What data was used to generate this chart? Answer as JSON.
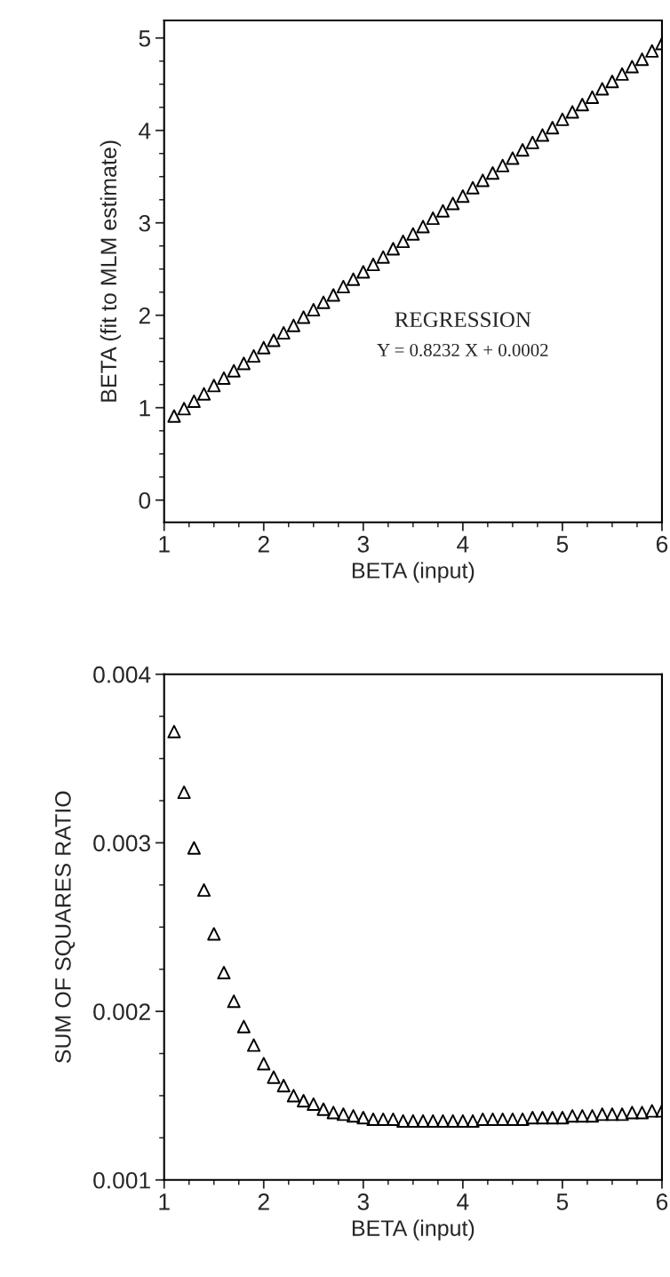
{
  "chart_data": [
    {
      "type": "scatter",
      "xlabel": "BETA (input)",
      "ylabel": "BETA (fit to MLM estimate)",
      "marker": "triangle",
      "grid": false,
      "legend": false,
      "annotations": [
        "REGRESSION",
        "Y = 0.8232 X + 0.0002"
      ],
      "xlim": [
        1,
        6
      ],
      "ylim": [
        -0.24,
        5.19
      ],
      "xticks": [
        1,
        {
          "value": 1.25,
          "label": null
        },
        {
          "value": 1.5,
          "label": null
        },
        {
          "value": 1.75,
          "label": null
        },
        2,
        {
          "value": 2.25,
          "label": null
        },
        {
          "value": 2.5,
          "label": null
        },
        {
          "value": 2.75,
          "label": null
        },
        3,
        {
          "value": 3.25,
          "label": null
        },
        {
          "value": 3.5,
          "label": null
        },
        {
          "value": 3.75,
          "label": null
        },
        4,
        {
          "value": 4.25,
          "label": null
        },
        {
          "value": 4.5,
          "label": null
        },
        {
          "value": 4.75,
          "label": null
        },
        5,
        {
          "value": 5.25,
          "label": null
        },
        {
          "value": 5.5,
          "label": null
        },
        {
          "value": 5.75,
          "label": null
        },
        6
      ],
      "yticks": [
        0,
        {
          "value": 0.25,
          "label": null
        },
        {
          "value": 0.5,
          "label": null
        },
        {
          "value": 0.75,
          "label": null
        },
        1,
        {
          "value": 1.25,
          "label": null
        },
        {
          "value": 1.5,
          "label": null
        },
        {
          "value": 1.75,
          "label": null
        },
        2,
        {
          "value": 2.25,
          "label": null
        },
        {
          "value": 2.5,
          "label": null
        },
        {
          "value": 2.75,
          "label": null
        },
        3,
        {
          "value": 3.25,
          "label": null
        },
        {
          "value": 3.5,
          "label": null
        },
        {
          "value": 3.75,
          "label": null
        },
        4,
        {
          "value": 4.25,
          "label": null
        },
        {
          "value": 4.5,
          "label": null
        },
        {
          "value": 4.75,
          "label": null
        },
        5
      ],
      "series": [
        {
          "color": "#000000",
          "x": [
            1.1,
            1.2,
            1.3,
            1.4,
            1.5,
            1.6,
            1.7,
            1.8,
            1.9,
            2.0,
            2.1,
            2.2,
            2.3,
            2.4,
            2.5,
            2.6,
            2.7,
            2.8,
            2.9,
            3.0,
            3.1,
            3.2,
            3.3,
            3.4,
            3.5,
            3.6,
            3.7,
            3.8,
            3.9,
            4.0,
            4.1,
            4.2,
            4.3,
            4.4,
            4.5,
            4.6,
            4.7,
            4.8,
            4.9,
            5.0,
            5.1,
            5.2,
            5.3,
            5.4,
            5.5,
            5.6,
            5.7,
            5.8,
            5.9,
            6.0
          ],
          "values": [
            0.91,
            0.99,
            1.07,
            1.15,
            1.24,
            1.32,
            1.4,
            1.48,
            1.56,
            1.65,
            1.73,
            1.81,
            1.89,
            1.98,
            2.06,
            2.14,
            2.22,
            2.31,
            2.39,
            2.47,
            2.55,
            2.63,
            2.72,
            2.8,
            2.88,
            2.96,
            3.05,
            3.13,
            3.21,
            3.29,
            3.38,
            3.46,
            3.54,
            3.62,
            3.7,
            3.79,
            3.87,
            3.95,
            4.03,
            4.12,
            4.2,
            4.28,
            4.36,
            4.45,
            4.53,
            4.61,
            4.69,
            4.77,
            4.86,
            4.94
          ]
        }
      ]
    },
    {
      "type": "scatter",
      "xlabel": "BETA (input)",
      "ylabel": "SUM OF SQUARES RATIO",
      "marker": "triangle",
      "grid": false,
      "legend": false,
      "xlim": [
        1,
        6
      ],
      "ylim": [
        0.001,
        0.004
      ],
      "xticks": [
        1,
        {
          "value": 1.25,
          "label": null
        },
        {
          "value": 1.5,
          "label": null
        },
        {
          "value": 1.75,
          "label": null
        },
        2,
        {
          "value": 2.25,
          "label": null
        },
        {
          "value": 2.5,
          "label": null
        },
        {
          "value": 2.75,
          "label": null
        },
        3,
        {
          "value": 3.25,
          "label": null
        },
        {
          "value": 3.5,
          "label": null
        },
        {
          "value": 3.75,
          "label": null
        },
        4,
        {
          "value": 4.25,
          "label": null
        },
        {
          "value": 4.5,
          "label": null
        },
        {
          "value": 4.75,
          "label": null
        },
        5,
        {
          "value": 5.25,
          "label": null
        },
        {
          "value": 5.5,
          "label": null
        },
        {
          "value": 5.75,
          "label": null
        },
        6
      ],
      "yticks": [
        0.001,
        {
          "value": 0.00125,
          "label": null
        },
        {
          "value": 0.0015,
          "label": null
        },
        {
          "value": 0.00175,
          "label": null
        },
        0.002,
        {
          "value": 0.00225,
          "label": null
        },
        {
          "value": 0.0025,
          "label": null
        },
        {
          "value": 0.00275,
          "label": null
        },
        0.003,
        {
          "value": 0.00325,
          "label": null
        },
        {
          "value": 0.0035,
          "label": null
        },
        {
          "value": 0.00375,
          "label": null
        },
        0.004
      ],
      "series": [
        {
          "color": "#000000",
          "x": [
            1.1,
            1.2,
            1.3,
            1.4,
            1.5,
            1.6,
            1.7,
            1.8,
            1.9,
            2.0,
            2.1,
            2.2,
            2.3,
            2.4,
            2.5,
            2.6,
            2.7,
            2.8,
            2.9,
            3.0,
            3.1,
            3.2,
            3.3,
            3.4,
            3.5,
            3.6,
            3.7,
            3.8,
            3.9,
            4.0,
            4.1,
            4.2,
            4.3,
            4.4,
            4.5,
            4.6,
            4.7,
            4.8,
            4.9,
            5.0,
            5.1,
            5.2,
            5.3,
            5.4,
            5.5,
            5.6,
            5.7,
            5.8,
            5.9,
            6.0
          ],
          "values": [
            0.00366,
            0.0033,
            0.00297,
            0.00272,
            0.00246,
            0.00223,
            0.00206,
            0.00191,
            0.0018,
            0.00169,
            0.00161,
            0.00156,
            0.0015,
            0.00147,
            0.00145,
            0.00142,
            0.0014,
            0.00139,
            0.00138,
            0.00137,
            0.00136,
            0.00136,
            0.00136,
            0.00135,
            0.00135,
            0.00135,
            0.00135,
            0.00135,
            0.00135,
            0.00135,
            0.00135,
            0.00136,
            0.00136,
            0.00136,
            0.00136,
            0.00136,
            0.00137,
            0.00137,
            0.00137,
            0.00137,
            0.00138,
            0.00138,
            0.00138,
            0.00139,
            0.00139,
            0.00139,
            0.0014,
            0.0014,
            0.00141,
            0.00141
          ]
        }
      ]
    }
  ]
}
